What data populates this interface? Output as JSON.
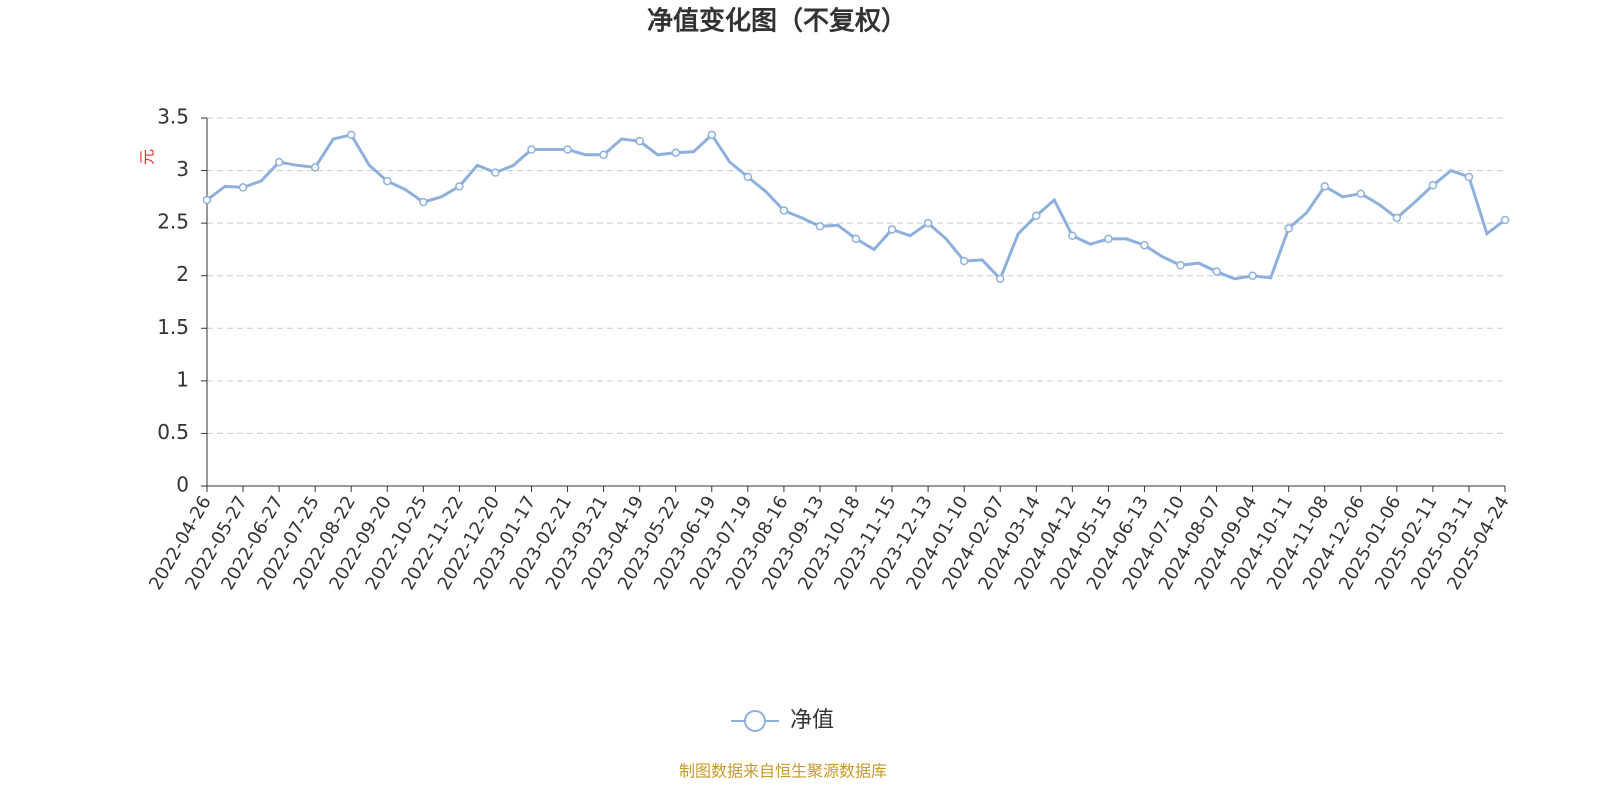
{
  "chart_data": {
    "type": "line",
    "title": "净值变化图（不复权）",
    "y_label": "元",
    "source": "制图数据来自恒生聚源数据库",
    "categories": [
      "2022-04-26",
      null,
      "2022-05-27",
      null,
      "2022-06-27",
      null,
      "2022-07-25",
      null,
      "2022-08-22",
      null,
      "2022-09-20",
      null,
      "2022-10-25",
      null,
      "2022-11-22",
      null,
      "2022-12-20",
      null,
      "2023-01-17",
      null,
      "2023-02-21",
      null,
      "2023-03-21",
      null,
      "2023-04-19",
      null,
      "2023-05-22",
      null,
      "2023-06-19",
      null,
      "2023-07-19",
      null,
      "2023-08-16",
      null,
      "2023-09-13",
      null,
      "2023-10-18",
      null,
      "2023-11-15",
      null,
      "2023-12-13",
      null,
      "2024-01-10",
      null,
      "2024-02-07",
      null,
      "2024-03-14",
      null,
      "2024-04-12",
      null,
      "2024-05-15",
      null,
      "2024-06-13",
      null,
      "2024-07-10",
      null,
      "2024-08-07",
      null,
      "2024-09-04",
      null,
      "2024-10-11",
      null,
      "2024-11-08",
      null,
      "2024-12-06",
      null,
      "2025-01-06",
      null,
      "2025-02-11",
      null,
      "2025-03-11",
      null,
      "2025-04-24"
    ],
    "series": [
      {
        "name": "净值",
        "color": "#8eb0dc",
        "values": [
          2.72,
          2.85,
          2.84,
          2.9,
          3.08,
          3.05,
          3.03,
          3.3,
          3.34,
          3.05,
          2.9,
          2.82,
          2.7,
          2.75,
          2.85,
          3.05,
          2.98,
          3.05,
          3.2,
          3.2,
          3.2,
          3.15,
          3.15,
          3.3,
          3.28,
          3.15,
          3.17,
          3.18,
          3.34,
          3.08,
          2.94,
          2.8,
          2.62,
          2.55,
          2.47,
          2.48,
          2.35,
          2.25,
          2.44,
          2.38,
          2.5,
          2.35,
          2.14,
          2.15,
          1.97,
          2.4,
          2.57,
          2.72,
          2.38,
          2.3,
          2.35,
          2.35,
          2.29,
          2.18,
          2.1,
          2.12,
          2.04,
          1.97,
          2.0,
          1.98,
          2.45,
          2.6,
          2.85,
          2.75,
          2.78,
          2.68,
          2.55,
          2.7,
          2.86,
          3.0,
          2.94,
          2.4,
          2.53
        ]
      }
    ],
    "ylim": [
      0,
      3.5
    ],
    "yticks": [
      0,
      0.5,
      1,
      1.5,
      2,
      2.5,
      3,
      3.5
    ],
    "grid": true
  }
}
